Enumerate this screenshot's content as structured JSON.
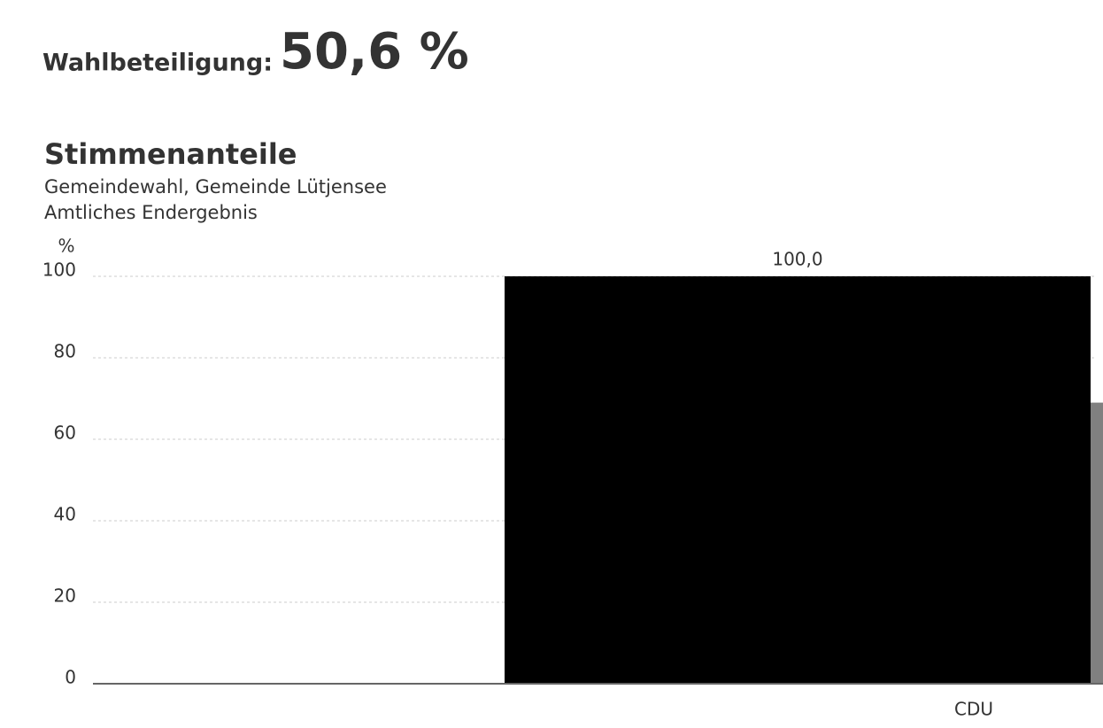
{
  "header": {
    "label": "Wahlbeteiligung:",
    "value": 50.6,
    "value_label": "50,6 %"
  },
  "chart_data": {
    "type": "bar",
    "title": "Stimmenanteile",
    "subtitle": [
      "Gemeindewahl, Gemeinde Lütjensee",
      "Amtliches Endergebnis"
    ],
    "y_label": "%",
    "categories": [
      "CDU"
    ],
    "series": [
      {
        "color": "#000000",
        "values": [
          100
        ],
        "value_labels": [
          "100,0"
        ]
      },
      {
        "color": "#808080",
        "values": [
          69
        ]
      }
    ],
    "ylim": [
      0,
      100
    ],
    "yticks": [
      0,
      20,
      40,
      60,
      80,
      100
    ],
    "grid": true
  }
}
